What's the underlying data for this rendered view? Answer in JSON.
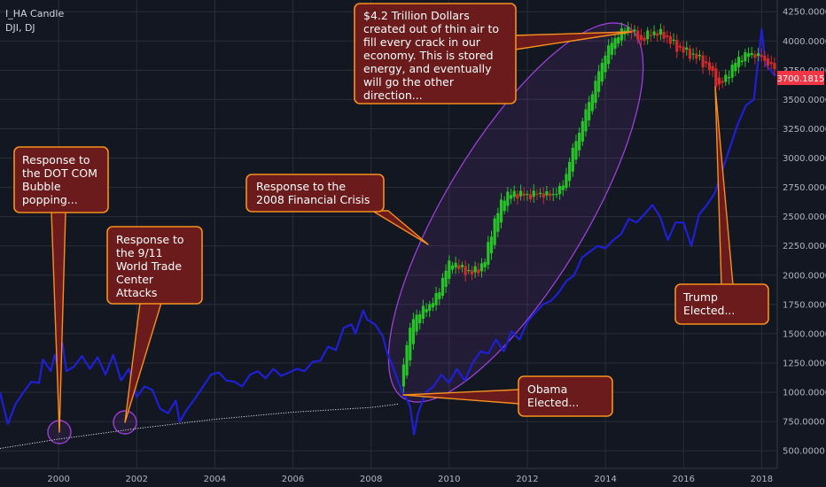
{
  "legend": {
    "symbol_line": "I_HA Candle",
    "overlay_line": "DJI, DJ"
  },
  "price_badge": "3700.1815",
  "colors": {
    "background": "#131722",
    "grid": "#2a2e39",
    "dji_line": "#1f1fd6",
    "candle_up": "#26c426",
    "candle_down": "#d42a2a",
    "ellipse": "#9b3fd8",
    "callout_fill": "#6b1b1b",
    "callout_stroke": "#f5901e",
    "badge": "#f23645",
    "legacy_dots": "#d9d9d9"
  },
  "callouts": [
    {
      "id": "dotcom",
      "lines": [
        "Response to",
        "the DOT COM",
        "Bubble",
        "popping..."
      ]
    },
    {
      "id": "nine-eleven",
      "lines": [
        "Response to",
        "the 9/11",
        "World Trade",
        "Center",
        "Attacks"
      ]
    },
    {
      "id": "financial-crisis",
      "lines": [
        "Response to the",
        "2008 Financial Crisis"
      ]
    },
    {
      "id": "trillions",
      "lines": [
        "$4.2 Trillion Dollars",
        "created out of thin air to",
        "fill every crack in our",
        "economy. This is stored",
        "energy, and eventually",
        "will go the other",
        "direction..."
      ]
    },
    {
      "id": "obama",
      "lines": [
        "Obama",
        "Elected..."
      ]
    },
    {
      "id": "trump",
      "lines": [
        "Trump",
        "Elected..."
      ]
    }
  ],
  "chart_data": {
    "type": "line",
    "x_axis": {
      "min": 1998.5,
      "max": 2018.4,
      "tick_labels": [
        "2000",
        "2002",
        "2004",
        "2006",
        "2008",
        "2010",
        "2012",
        "2014",
        "2016",
        "2018"
      ]
    },
    "y_axis": {
      "min": 350,
      "max": 4350,
      "tick_labels": [
        "500.0000",
        "750.0000",
        "1000.0000",
        "1250.0000",
        "1500.0000",
        "1750.0000",
        "2000.0000",
        "2250.0000",
        "2500.0000",
        "2750.0000",
        "3000.0000",
        "3250.0000",
        "3500.0000",
        "3750.0000",
        "4000.0000",
        "4250.0000"
      ]
    },
    "grid": true,
    "series": [
      {
        "role": "DJI line",
        "points": [
          [
            1998.5,
            1000
          ],
          [
            1998.7,
            730
          ],
          [
            1998.9,
            900
          ],
          [
            1999.1,
            1000
          ],
          [
            1999.3,
            1090
          ],
          [
            1999.5,
            1080
          ],
          [
            1999.6,
            1280
          ],
          [
            1999.8,
            1180
          ],
          [
            1999.9,
            1320
          ],
          [
            2000.0,
            1200
          ],
          [
            2000.1,
            1420
          ],
          [
            2000.2,
            1180
          ],
          [
            2000.4,
            1220
          ],
          [
            2000.6,
            1310
          ],
          [
            2000.8,
            1200
          ],
          [
            2001.0,
            1300
          ],
          [
            2001.2,
            1150
          ],
          [
            2001.4,
            1320
          ],
          [
            2001.6,
            1100
          ],
          [
            2001.8,
            1200
          ],
          [
            2002.0,
            960
          ],
          [
            2002.2,
            1050
          ],
          [
            2002.4,
            1020
          ],
          [
            2002.6,
            860
          ],
          [
            2002.8,
            820
          ],
          [
            2003.0,
            930
          ],
          [
            2003.1,
            750
          ],
          [
            2003.3,
            860
          ],
          [
            2003.5,
            950
          ],
          [
            2003.7,
            1050
          ],
          [
            2003.9,
            1150
          ],
          [
            2004.1,
            1170
          ],
          [
            2004.3,
            1100
          ],
          [
            2004.5,
            1090
          ],
          [
            2004.7,
            1050
          ],
          [
            2004.9,
            1150
          ],
          [
            2005.1,
            1180
          ],
          [
            2005.3,
            1120
          ],
          [
            2005.5,
            1200
          ],
          [
            2005.7,
            1140
          ],
          [
            2005.9,
            1170
          ],
          [
            2006.1,
            1200
          ],
          [
            2006.3,
            1180
          ],
          [
            2006.5,
            1260
          ],
          [
            2006.7,
            1270
          ],
          [
            2006.9,
            1390
          ],
          [
            2007.1,
            1360
          ],
          [
            2007.3,
            1550
          ],
          [
            2007.5,
            1580
          ],
          [
            2007.6,
            1500
          ],
          [
            2007.8,
            1700
          ],
          [
            2007.9,
            1620
          ],
          [
            2008.1,
            1580
          ],
          [
            2008.3,
            1480
          ],
          [
            2008.4,
            1350
          ],
          [
            2008.6,
            1180
          ],
          [
            2008.8,
            1000
          ],
          [
            2008.9,
            950
          ],
          [
            2009.0,
            880
          ],
          [
            2009.1,
            640
          ],
          [
            2009.2,
            820
          ],
          [
            2009.4,
            1000
          ],
          [
            2009.6,
            1050
          ],
          [
            2009.8,
            1150
          ],
          [
            2010.0,
            1080
          ],
          [
            2010.2,
            1200
          ],
          [
            2010.4,
            1100
          ],
          [
            2010.6,
            1250
          ],
          [
            2010.8,
            1350
          ],
          [
            2011.0,
            1330
          ],
          [
            2011.2,
            1450
          ],
          [
            2011.4,
            1350
          ],
          [
            2011.6,
            1520
          ],
          [
            2011.8,
            1450
          ],
          [
            2012.0,
            1600
          ],
          [
            2012.2,
            1680
          ],
          [
            2012.4,
            1750
          ],
          [
            2012.6,
            1780
          ],
          [
            2012.8,
            1850
          ],
          [
            2013.0,
            1950
          ],
          [
            2013.2,
            2000
          ],
          [
            2013.4,
            2150
          ],
          [
            2013.6,
            2200
          ],
          [
            2013.8,
            2250
          ],
          [
            2014.0,
            2230
          ],
          [
            2014.2,
            2300
          ],
          [
            2014.4,
            2350
          ],
          [
            2014.6,
            2480
          ],
          [
            2014.8,
            2450
          ],
          [
            2015.0,
            2520
          ],
          [
            2015.2,
            2600
          ],
          [
            2015.4,
            2500
          ],
          [
            2015.6,
            2300
          ],
          [
            2015.8,
            2450
          ],
          [
            2016.0,
            2450
          ],
          [
            2016.2,
            2250
          ],
          [
            2016.4,
            2520
          ],
          [
            2016.6,
            2600
          ],
          [
            2016.8,
            2700
          ],
          [
            2017.0,
            2900
          ],
          [
            2017.2,
            3100
          ],
          [
            2017.4,
            3300
          ],
          [
            2017.6,
            3450
          ],
          [
            2017.8,
            3500
          ],
          [
            2017.9,
            3800
          ],
          [
            2018.0,
            4100
          ],
          [
            2018.1,
            3800
          ],
          [
            2018.2,
            3760
          ],
          [
            2018.35,
            3700
          ]
        ]
      },
      {
        "role": "HA candle closes",
        "points": [
          [
            2008.75,
            1050
          ],
          [
            2008.9,
            1400
          ],
          [
            2009.1,
            1650
          ],
          [
            2009.4,
            1720
          ],
          [
            2009.7,
            1820
          ],
          [
            2009.9,
            2050
          ],
          [
            2010.1,
            2120
          ],
          [
            2010.3,
            2050
          ],
          [
            2010.6,
            2020
          ],
          [
            2010.9,
            2100
          ],
          [
            2011.1,
            2400
          ],
          [
            2011.4,
            2680
          ],
          [
            2011.7,
            2700
          ],
          [
            2012.0,
            2680
          ],
          [
            2012.3,
            2700
          ],
          [
            2012.6,
            2680
          ],
          [
            2012.9,
            2750
          ],
          [
            2013.1,
            3000
          ],
          [
            2013.4,
            3300
          ],
          [
            2013.7,
            3600
          ],
          [
            2014.0,
            3900
          ],
          [
            2014.3,
            4050
          ],
          [
            2014.6,
            4120
          ],
          [
            2014.9,
            4000
          ],
          [
            2015.2,
            4080
          ],
          [
            2015.5,
            4050
          ],
          [
            2015.8,
            3950
          ],
          [
            2016.1,
            3900
          ],
          [
            2016.4,
            3850
          ],
          [
            2016.7,
            3750
          ],
          [
            2016.9,
            3600
          ],
          [
            2017.1,
            3700
          ],
          [
            2017.4,
            3850
          ],
          [
            2017.7,
            3900
          ],
          [
            2018.0,
            3860
          ],
          [
            2018.35,
            3750
          ]
        ]
      },
      {
        "role": "pre-2008 dotted baseline",
        "points": [
          [
            1998.5,
            520
          ],
          [
            2000.0,
            600
          ],
          [
            2002.0,
            690
          ],
          [
            2004.0,
            770
          ],
          [
            2006.0,
            830
          ],
          [
            2008.0,
            870
          ],
          [
            2008.7,
            900
          ]
        ]
      }
    ]
  }
}
